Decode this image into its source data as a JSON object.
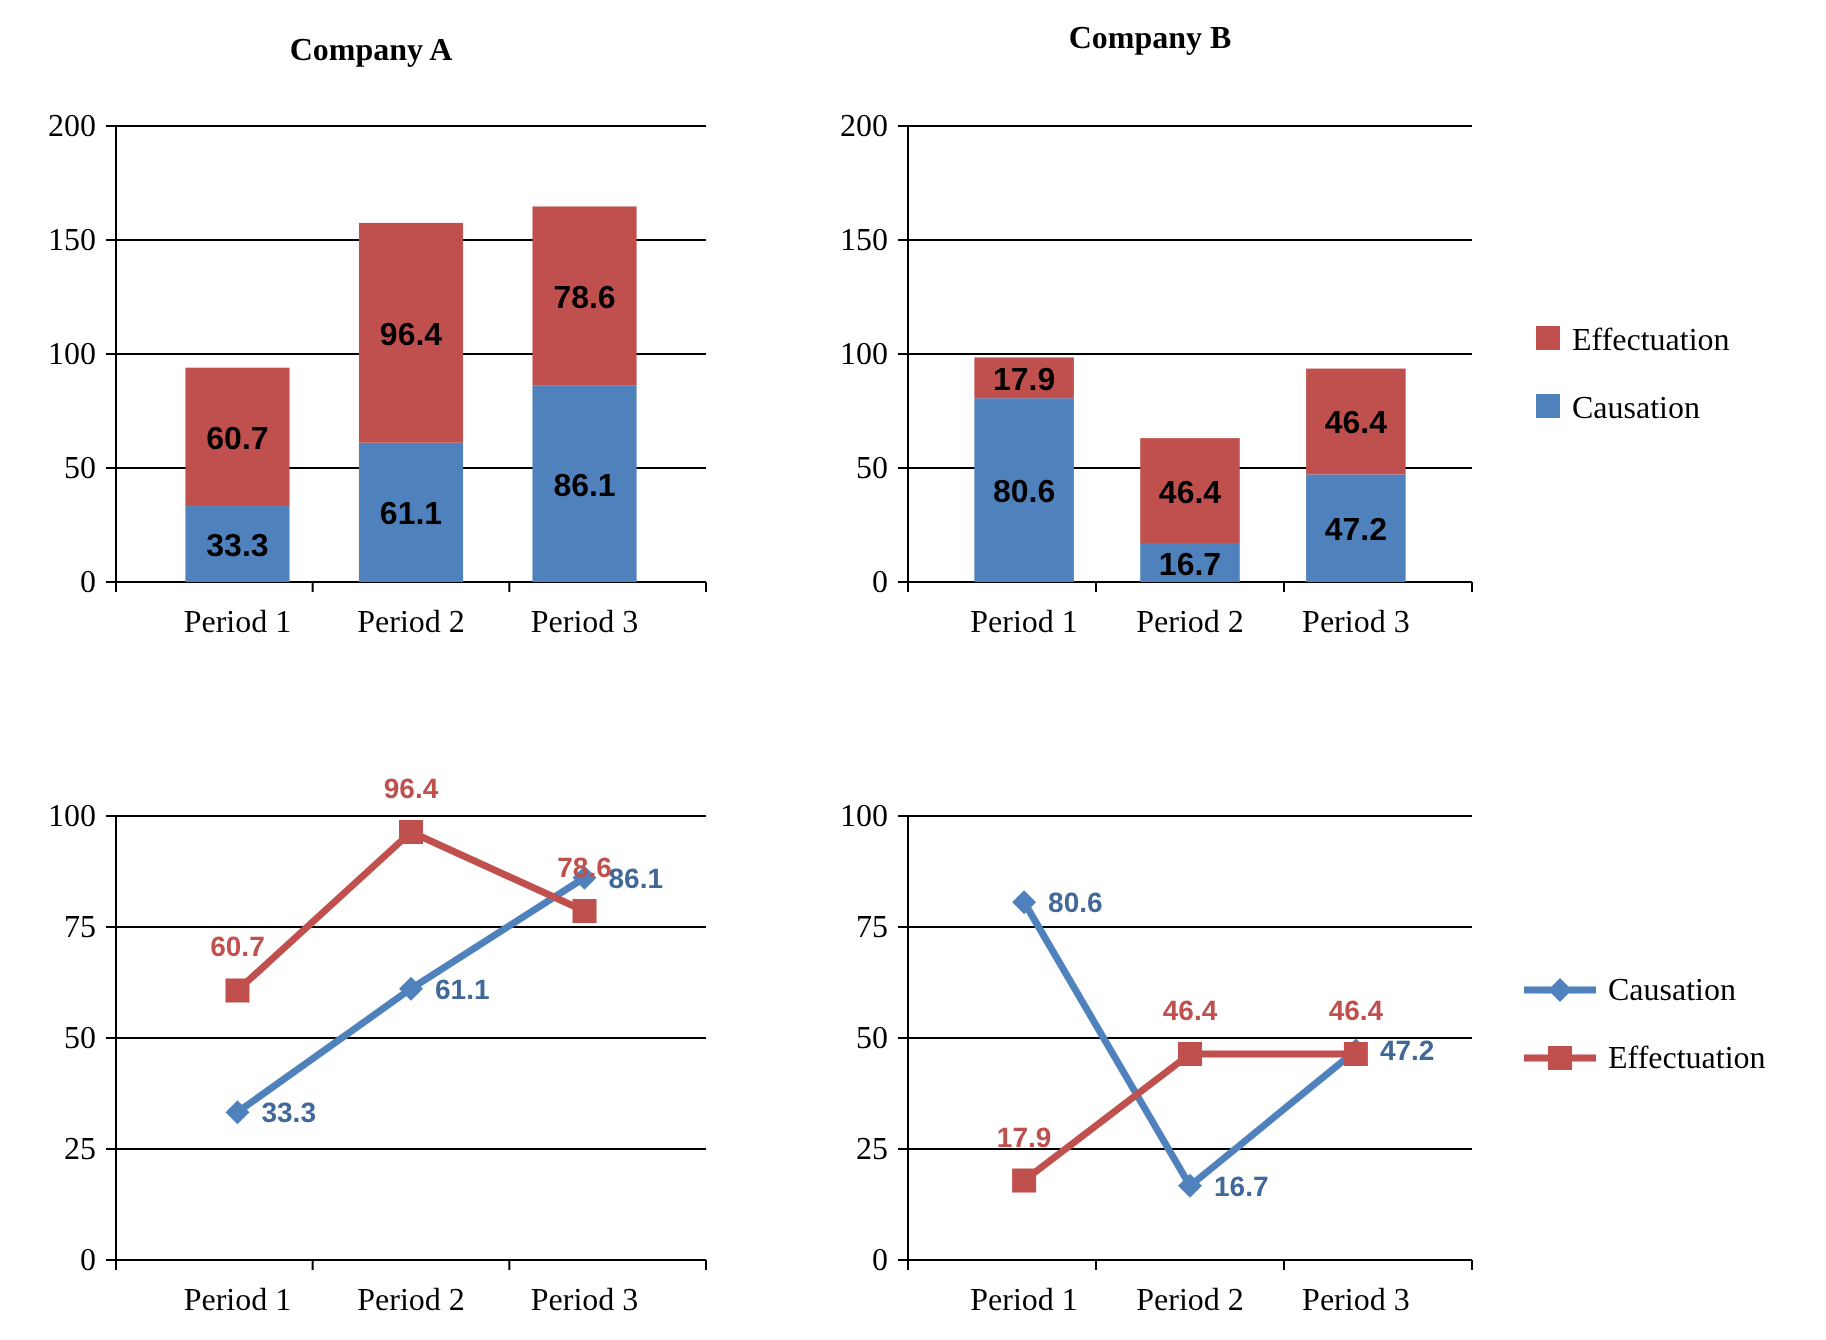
{
  "chart_data": [
    {
      "type": "bar",
      "title": "Company A",
      "stacked": true,
      "categories": [
        "Period 1",
        "Period 2",
        "Period 3"
      ],
      "series": [
        {
          "color": "#4f81bd",
          "values": [
            33.3,
            61.1,
            86.1
          ]
        },
        {
          "color": "#c0504d",
          "values": [
            60.7,
            96.4,
            78.6
          ]
        }
      ],
      "ylim": [
        0,
        200
      ],
      "yticks": [
        0,
        50,
        100,
        150,
        200
      ],
      "grid": "y",
      "data_labels": true
    },
    {
      "type": "bar",
      "title": "Company B",
      "stacked": true,
      "categories": [
        "Period 1",
        "Period 2",
        "Period 3"
      ],
      "series": [
        {
          "name": "Causation",
          "color": "#4f81bd",
          "values": [
            80.6,
            16.7,
            47.2
          ]
        },
        {
          "name": "Effectuation",
          "color": "#c0504d",
          "values": [
            17.9,
            46.4,
            46.4
          ]
        }
      ],
      "ylim": [
        0,
        200
      ],
      "yticks": [
        0,
        50,
        100,
        150,
        200
      ],
      "grid": "y",
      "data_labels": true,
      "legend": "right"
    },
    {
      "type": "line",
      "categories": [
        "Period 1",
        "Period 2",
        "Period 3"
      ],
      "series": [
        {
          "color": "#4f81bd",
          "values": [
            33.3,
            61.1,
            86.1
          ],
          "marker": "diamond"
        },
        {
          "color": "#c0504d",
          "values": [
            60.7,
            96.4,
            78.6
          ],
          "marker": "square"
        }
      ],
      "ylim": [
        0,
        100
      ],
      "yticks": [
        0,
        25,
        50,
        75,
        100
      ],
      "grid": "y",
      "data_labels": true
    },
    {
      "type": "line",
      "categories": [
        "Period 1",
        "Period 2",
        "Period 3"
      ],
      "series": [
        {
          "name": "Causation",
          "color": "#4f81bd",
          "values": [
            80.6,
            16.7,
            47.2
          ],
          "marker": "diamond"
        },
        {
          "name": "Effectuation",
          "color": "#c0504d",
          "values": [
            17.9,
            46.4,
            46.4
          ],
          "marker": "square"
        }
      ],
      "ylim": [
        0,
        100
      ],
      "yticks": [
        0,
        25,
        50,
        75,
        100
      ],
      "grid": "y",
      "data_labels": true,
      "legend": "right"
    }
  ]
}
